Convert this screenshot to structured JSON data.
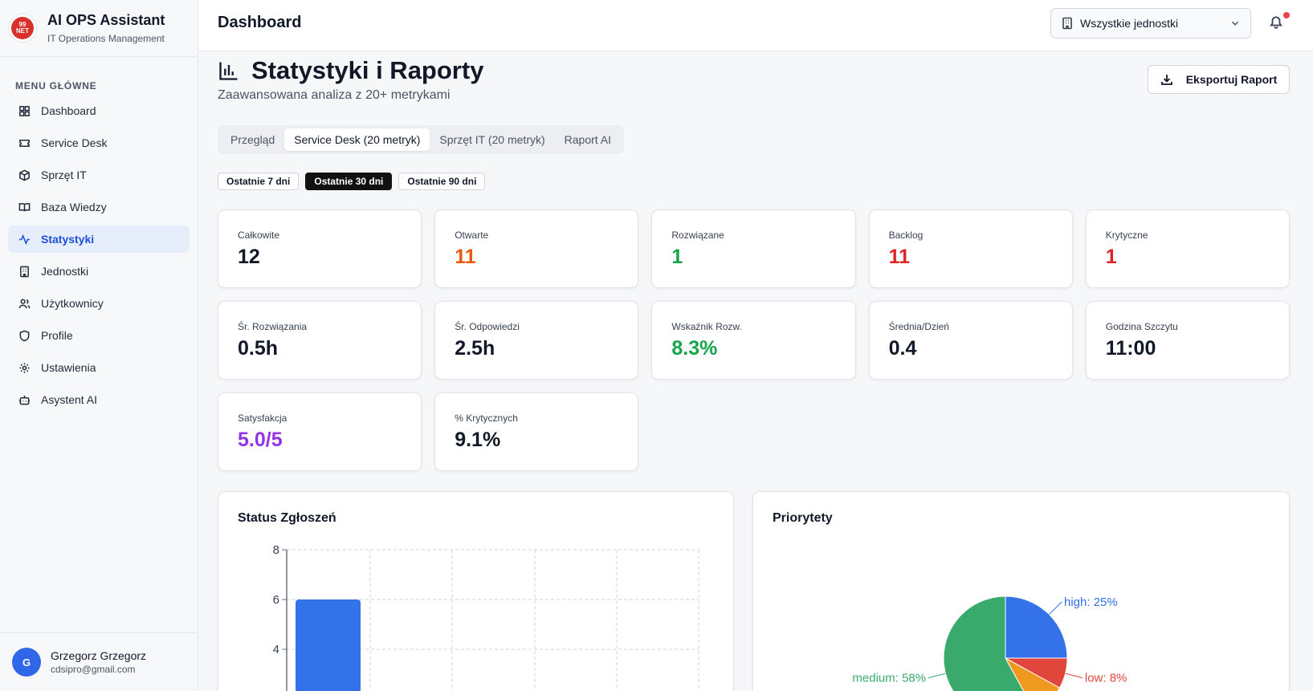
{
  "sidebar": {
    "brand_title": "AI OPS Assistant",
    "brand_sub": "IT Operations Management",
    "logo_text": "99\nNET",
    "menu_heading": "MENU GŁÓWNE",
    "items": [
      {
        "label": "Dashboard",
        "icon": "grid-icon"
      },
      {
        "label": "Service Desk",
        "icon": "ticket-icon"
      },
      {
        "label": "Sprzęt IT",
        "icon": "box-icon"
      },
      {
        "label": "Baza Wiedzy",
        "icon": "book-icon"
      },
      {
        "label": "Statystyki",
        "icon": "activity-icon"
      },
      {
        "label": "Jednostki",
        "icon": "building-icon"
      },
      {
        "label": "Użytkownicy",
        "icon": "users-icon"
      },
      {
        "label": "Profile",
        "icon": "shield-icon"
      },
      {
        "label": "Ustawienia",
        "icon": "gear-icon"
      },
      {
        "label": "Asystent AI",
        "icon": "bot-icon"
      }
    ],
    "active_index": 4,
    "user": {
      "initial": "G",
      "name": "Grzegorz Grzegorz",
      "email": "cdsipro@gmail.com"
    }
  },
  "header": {
    "title": "Dashboard",
    "unit_select": "Wszystkie jednostki"
  },
  "page": {
    "title": "Statystyki i Raporty",
    "subtitle": "Zaawansowana analiza z 20+ metrykami",
    "export_label": "Eksportuj Raport",
    "tabs": [
      "Przegląd",
      "Service Desk (20 metryk)",
      "Sprzęt IT (20 metryk)",
      "Raport AI"
    ],
    "active_tab": 1,
    "ranges": [
      "Ostatnie 7 dni",
      "Ostatnie 30 dni",
      "Ostatnie 90 dni"
    ],
    "active_range": 1
  },
  "metrics": [
    {
      "label": "Całkowite",
      "value": "12",
      "color": "#111827"
    },
    {
      "label": "Otwarte",
      "value": "11",
      "color": "#ea580c"
    },
    {
      "label": "Rozwiązane",
      "value": "1",
      "color": "#16a34a"
    },
    {
      "label": "Backlog",
      "value": "11",
      "color": "#dc2626"
    },
    {
      "label": "Krytyczne",
      "value": "1",
      "color": "#dc2626"
    },
    {
      "label": "Śr. Rozwiązania",
      "value": "0.5h",
      "color": "#111827"
    },
    {
      "label": "Śr. Odpowiedzi",
      "value": "2.5h",
      "color": "#111827"
    },
    {
      "label": "Wskaźnik Rozw.",
      "value": "8.3%",
      "color": "#16a34a"
    },
    {
      "label": "Średnia/Dzień",
      "value": "0.4",
      "color": "#111827"
    },
    {
      "label": "Godzina Szczytu",
      "value": "11:00",
      "color": "#111827"
    },
    {
      "label": "Satysfakcja",
      "value": "5.0/5",
      "color": "#9333ea"
    },
    {
      "label": "% Krytycznych",
      "value": "9.1%",
      "color": "#111827"
    }
  ],
  "chart_data": [
    {
      "type": "bar",
      "title": "Status Zgłoszeń",
      "ylim": [
        0,
        8
      ],
      "yticks": [
        "8",
        "6",
        "4"
      ],
      "values": [
        6
      ],
      "grid": true,
      "bar_color": "#3372e8"
    },
    {
      "type": "pie",
      "title": "Priorytety",
      "slices": [
        {
          "name": "high",
          "value": 25,
          "label": "high: 25%",
          "color": "#3372e8"
        },
        {
          "name": "low",
          "value": 8,
          "label": "low: 8%",
          "color": "#e0463c"
        },
        {
          "name": "",
          "value": 9,
          "label": "",
          "color": "#ef9a1f"
        },
        {
          "name": "medium",
          "value": 58,
          "label": "medium: 58%",
          "color": "#3aaa6c"
        }
      ]
    }
  ]
}
